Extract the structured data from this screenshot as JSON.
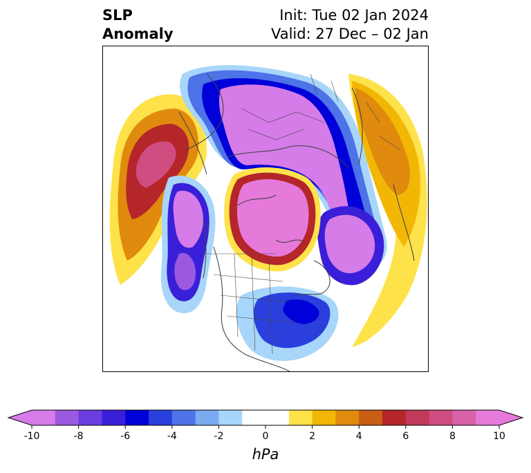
{
  "title": {
    "left_line1": "SLP",
    "left_line2": "Anomaly",
    "right_line1": "Init: Tue 02 Jan 2024",
    "right_line2": "Valid: 27 Dec – 02 Jan"
  },
  "colorbar": {
    "label": "hPa",
    "min": -10,
    "max": 10,
    "tick_labels": [
      "-10",
      "-8",
      "-6",
      "-4",
      "-2",
      "0",
      "2",
      "4",
      "6",
      "8",
      "10"
    ],
    "tick_values": [
      -10,
      -8,
      -6,
      -4,
      -2,
      0,
      2,
      4,
      6,
      8,
      10
    ],
    "colors": [
      "#d57ce8",
      "#9b59e0",
      "#6b3de0",
      "#3a1fd8",
      "#0000d8",
      "#2a3fdc",
      "#4e72e8",
      "#7aaaf0",
      "#a8d6fa",
      "#ffffff",
      "#ffffff",
      "#fde24a",
      "#f2b705",
      "#e08a0e",
      "#c85e12",
      "#b4262a",
      "#c23a5a",
      "#cf4d80",
      "#d862a8",
      "#e67adb"
    ],
    "extend": "both"
  },
  "map": {
    "projection": "north-polar-stereographic",
    "variable": "sea-level-pressure-anomaly"
  }
}
